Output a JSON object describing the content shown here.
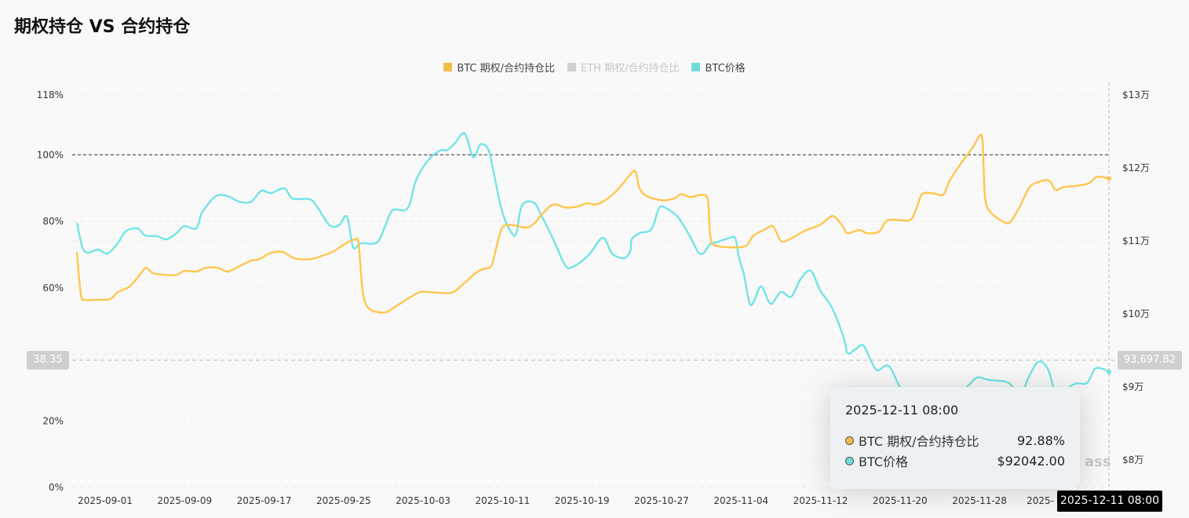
{
  "title": "期权持仓 VS 合约持仓",
  "legend": [
    {
      "label": "BTC  期权/合约持仓比",
      "color": "#F2BE47",
      "active": true
    },
    {
      "label": "ETH  期权/合约持仓比",
      "color": "#D0D0D0",
      "active": false
    },
    {
      "label": "BTC价格",
      "color": "#6FDCDC",
      "active": true
    }
  ],
  "watermark": "ass",
  "tooltip": {
    "date": "2025-12-11 08:00",
    "rows": [
      {
        "label": "BTC 期权/合约持仓比",
        "value": "92.88%",
        "color": "#F2BE47"
      },
      {
        "label": "BTC价格",
        "value": "$92042.00",
        "color": "#6FDCDC"
      }
    ]
  },
  "crosshair": {
    "left_value": "38.35",
    "right_value": "93,697.82",
    "x_label": "2025-12-11 08:00"
  },
  "chart_data": {
    "type": "line",
    "title": "期权持仓 VS 合约持仓",
    "x_start_date": "2025-09-01",
    "x_tick_labels": [
      "2025-09-01",
      "2025-09-09",
      "2025-09-17",
      "2025-09-25",
      "2025-10-03",
      "2025-10-11",
      "2025-10-19",
      "2025-10-27",
      "2025-11-04",
      "2025-11-12",
      "2025-11-20",
      "2025-11-28",
      "2025-"
    ],
    "x_tick_days": [
      0,
      8,
      16,
      24,
      32,
      40,
      48,
      56,
      64,
      72,
      80,
      88,
      96
    ],
    "xlim_days": [
      -3.1,
      101.03
    ],
    "y_left": {
      "ticks": [
        0,
        20,
        60,
        80,
        100,
        118
      ],
      "tick_labels": [
        "0%",
        "20%",
        "60%",
        "80%",
        "100%",
        "118%"
      ],
      "grid_ticks": [
        0,
        20,
        40,
        60,
        80,
        100,
        118
      ],
      "range": [
        0,
        118
      ],
      "reference_line": 100
    },
    "y_right": {
      "ticks": [
        80000,
        90000,
        100000,
        110000,
        120000,
        130000
      ],
      "tick_labels": [
        "$8万",
        "$9万",
        "$10万",
        "$11万",
        "$12万",
        "$13万"
      ],
      "range": [
        76237,
        130000
      ]
    },
    "series": [
      {
        "name": "BTC  期权/合约持仓比",
        "axis": "left",
        "color": "#FFC64D",
        "points": [
          [
            -2.84,
            70.8
          ],
          [
            -2.45,
            58.0
          ],
          [
            -2.05,
            56.4
          ],
          [
            -1.11,
            56.4
          ],
          [
            0.47,
            56.6
          ],
          [
            1.26,
            58.7
          ],
          [
            2.45,
            60.4
          ],
          [
            3.48,
            63.9
          ],
          [
            4.11,
            66.0
          ],
          [
            4.82,
            64.4
          ],
          [
            6.0,
            63.9
          ],
          [
            7.19,
            63.9
          ],
          [
            7.98,
            65.1
          ],
          [
            9.16,
            64.9
          ],
          [
            10.11,
            66.0
          ],
          [
            11.37,
            66.0
          ],
          [
            12.32,
            64.9
          ],
          [
            13.51,
            66.5
          ],
          [
            14.69,
            68.2
          ],
          [
            15.48,
            68.6
          ],
          [
            16.67,
            70.5
          ],
          [
            17.85,
            70.8
          ],
          [
            19.04,
            68.9
          ],
          [
            20.62,
            68.6
          ],
          [
            21.8,
            69.6
          ],
          [
            22.99,
            71.0
          ],
          [
            24.17,
            73.3
          ],
          [
            25.12,
            74.5
          ],
          [
            25.51,
            73.3
          ],
          [
            25.91,
            59.2
          ],
          [
            26.54,
            53.8
          ],
          [
            28.12,
            52.6
          ],
          [
            29.3,
            54.5
          ],
          [
            30.49,
            56.8
          ],
          [
            31.67,
            58.7
          ],
          [
            32.86,
            58.7
          ],
          [
            34.83,
            58.5
          ],
          [
            36.02,
            61.1
          ],
          [
            37.6,
            65.1
          ],
          [
            38.78,
            66.3
          ],
          [
            39.18,
            69.8
          ],
          [
            39.97,
            78.1
          ],
          [
            41.15,
            78.8
          ],
          [
            42.34,
            78.1
          ],
          [
            43.13,
            79.2
          ],
          [
            44.08,
            82.5
          ],
          [
            45.1,
            85.1
          ],
          [
            46.29,
            84.2
          ],
          [
            47.47,
            84.4
          ],
          [
            48.5,
            85.4
          ],
          [
            49.45,
            85.1
          ],
          [
            50.63,
            87.0
          ],
          [
            51.82,
            90.3
          ],
          [
            53.0,
            94.6
          ],
          [
            53.4,
            94.8
          ],
          [
            53.79,
            89.9
          ],
          [
            54.58,
            87.5
          ],
          [
            56.16,
            86.3
          ],
          [
            57.35,
            87.0
          ],
          [
            57.98,
            88.2
          ],
          [
            58.93,
            87.3
          ],
          [
            60.11,
            88.0
          ],
          [
            60.66,
            86.3
          ],
          [
            60.9,
            75.7
          ],
          [
            61.3,
            72.9
          ],
          [
            62.88,
            72.2
          ],
          [
            64.45,
            72.6
          ],
          [
            65.25,
            75.7
          ],
          [
            66.43,
            77.6
          ],
          [
            67.22,
            78.5
          ],
          [
            68.01,
            74.1
          ],
          [
            68.8,
            74.5
          ],
          [
            70.38,
            77.1
          ],
          [
            71.96,
            79.0
          ],
          [
            72.99,
            81.4
          ],
          [
            73.54,
            81.1
          ],
          [
            74.33,
            78.1
          ],
          [
            74.72,
            76.4
          ],
          [
            75.91,
            77.4
          ],
          [
            76.7,
            76.4
          ],
          [
            77.88,
            76.9
          ],
          [
            78.67,
            80.2
          ],
          [
            79.86,
            80.4
          ],
          [
            81.04,
            80.4
          ],
          [
            81.67,
            84.0
          ],
          [
            82.23,
            88.2
          ],
          [
            83.41,
            88.4
          ],
          [
            84.36,
            88.0
          ],
          [
            84.99,
            92.2
          ],
          [
            86.18,
            97.6
          ],
          [
            87.36,
            102.4
          ],
          [
            88.0,
            105.7
          ],
          [
            88.31,
            104.0
          ],
          [
            88.55,
            87.5
          ],
          [
            89.1,
            82.8
          ],
          [
            90.52,
            79.7
          ],
          [
            91.15,
            80.0
          ],
          [
            92.1,
            84.7
          ],
          [
            93.05,
            90.3
          ],
          [
            94.08,
            92.0
          ],
          [
            95.02,
            92.2
          ],
          [
            95.66,
            89.4
          ],
          [
            96.45,
            90.3
          ],
          [
            98.03,
            90.8
          ],
          [
            99.05,
            91.5
          ],
          [
            99.84,
            93.4
          ],
          [
            101.03,
            92.88
          ]
        ]
      },
      {
        "name": "BTC价格",
        "axis": "right",
        "color": "#72E4E6",
        "points": [
          [
            -2.84,
            112470
          ],
          [
            -2.29,
            109140
          ],
          [
            -1.74,
            108390
          ],
          [
            -0.71,
            108820
          ],
          [
            0.24,
            108280
          ],
          [
            1.26,
            109680
          ],
          [
            2.05,
            111290
          ],
          [
            3.24,
            111720
          ],
          [
            4.03,
            110750
          ],
          [
            5.21,
            110650
          ],
          [
            6.16,
            110210
          ],
          [
            7.19,
            111080
          ],
          [
            7.98,
            112040
          ],
          [
            9.16,
            111720
          ],
          [
            9.79,
            113980
          ],
          [
            11.14,
            116130
          ],
          [
            12.32,
            116130
          ],
          [
            13.51,
            115380
          ],
          [
            14.69,
            115380
          ],
          [
            15.72,
            116880
          ],
          [
            16.67,
            116560
          ],
          [
            18.01,
            117200
          ],
          [
            18.88,
            115810
          ],
          [
            20.62,
            115700
          ],
          [
            21.41,
            114520
          ],
          [
            22.59,
            112150
          ],
          [
            23.54,
            112150
          ],
          [
            24.33,
            113330
          ],
          [
            24.96,
            109140
          ],
          [
            25.75,
            109680
          ],
          [
            27.33,
            109780
          ],
          [
            28.12,
            111830
          ],
          [
            28.91,
            114190
          ],
          [
            30.09,
            114190
          ],
          [
            30.65,
            115050
          ],
          [
            31.28,
            118280
          ],
          [
            32.46,
            120970
          ],
          [
            33.65,
            122370
          ],
          [
            34.44,
            122470
          ],
          [
            35.23,
            123440
          ],
          [
            36.18,
            124730
          ],
          [
            37.05,
            121500
          ],
          [
            37.76,
            123230
          ],
          [
            38.55,
            122580
          ],
          [
            39.02,
            119890
          ],
          [
            39.97,
            113980
          ],
          [
            40.92,
            111080
          ],
          [
            41.39,
            111080
          ],
          [
            41.94,
            114840
          ],
          [
            43.13,
            115270
          ],
          [
            43.92,
            113440
          ],
          [
            45.1,
            110210
          ],
          [
            46.29,
            106670
          ],
          [
            47.08,
            106450
          ],
          [
            48.66,
            108060
          ],
          [
            50.08,
            110430
          ],
          [
            51.03,
            108280
          ],
          [
            52.21,
            107630
          ],
          [
            52.84,
            108600
          ],
          [
            53.0,
            110210
          ],
          [
            53.79,
            111080
          ],
          [
            54.98,
            111610
          ],
          [
            55.77,
            114520
          ],
          [
            56.56,
            114410
          ],
          [
            57.74,
            113120
          ],
          [
            58.93,
            110430
          ],
          [
            59.72,
            108390
          ],
          [
            60.27,
            108390
          ],
          [
            60.9,
            109570
          ],
          [
            61.69,
            109890
          ],
          [
            62.88,
            110430
          ],
          [
            63.43,
            110320
          ],
          [
            63.82,
            107530
          ],
          [
            64.3,
            105380
          ],
          [
            64.85,
            101500
          ],
          [
            65.25,
            101610
          ],
          [
            66.03,
            103760
          ],
          [
            66.98,
            101400
          ],
          [
            68.01,
            103010
          ],
          [
            69.04,
            102360
          ],
          [
            69.98,
            104730
          ],
          [
            71.01,
            105910
          ],
          [
            71.96,
            103230
          ],
          [
            73.14,
            100860
          ],
          [
            74.33,
            96770
          ],
          [
            74.72,
            94620
          ],
          [
            75.51,
            95160
          ],
          [
            76.3,
            95700
          ],
          [
            77.09,
            93550
          ],
          [
            77.73,
            92260
          ],
          [
            78.83,
            92900
          ],
          [
            79.86,
            90320
          ],
          [
            80.65,
            88710
          ],
          [
            82.62,
            87630
          ],
          [
            84.99,
            88170
          ],
          [
            86.97,
            90320
          ],
          [
            87.76,
            91290
          ],
          [
            88.94,
            90970
          ],
          [
            90.52,
            90750
          ],
          [
            91.15,
            90320
          ],
          [
            92.1,
            88710
          ],
          [
            92.89,
            91180
          ],
          [
            93.92,
            93440
          ],
          [
            94.87,
            92470
          ],
          [
            95.5,
            89780
          ],
          [
            96.05,
            89250
          ],
          [
            97.63,
            90430
          ],
          [
            98.82,
            90540
          ],
          [
            99.61,
            92470
          ],
          [
            100.4,
            92470
          ],
          [
            101.03,
            92042
          ]
        ]
      }
    ]
  }
}
